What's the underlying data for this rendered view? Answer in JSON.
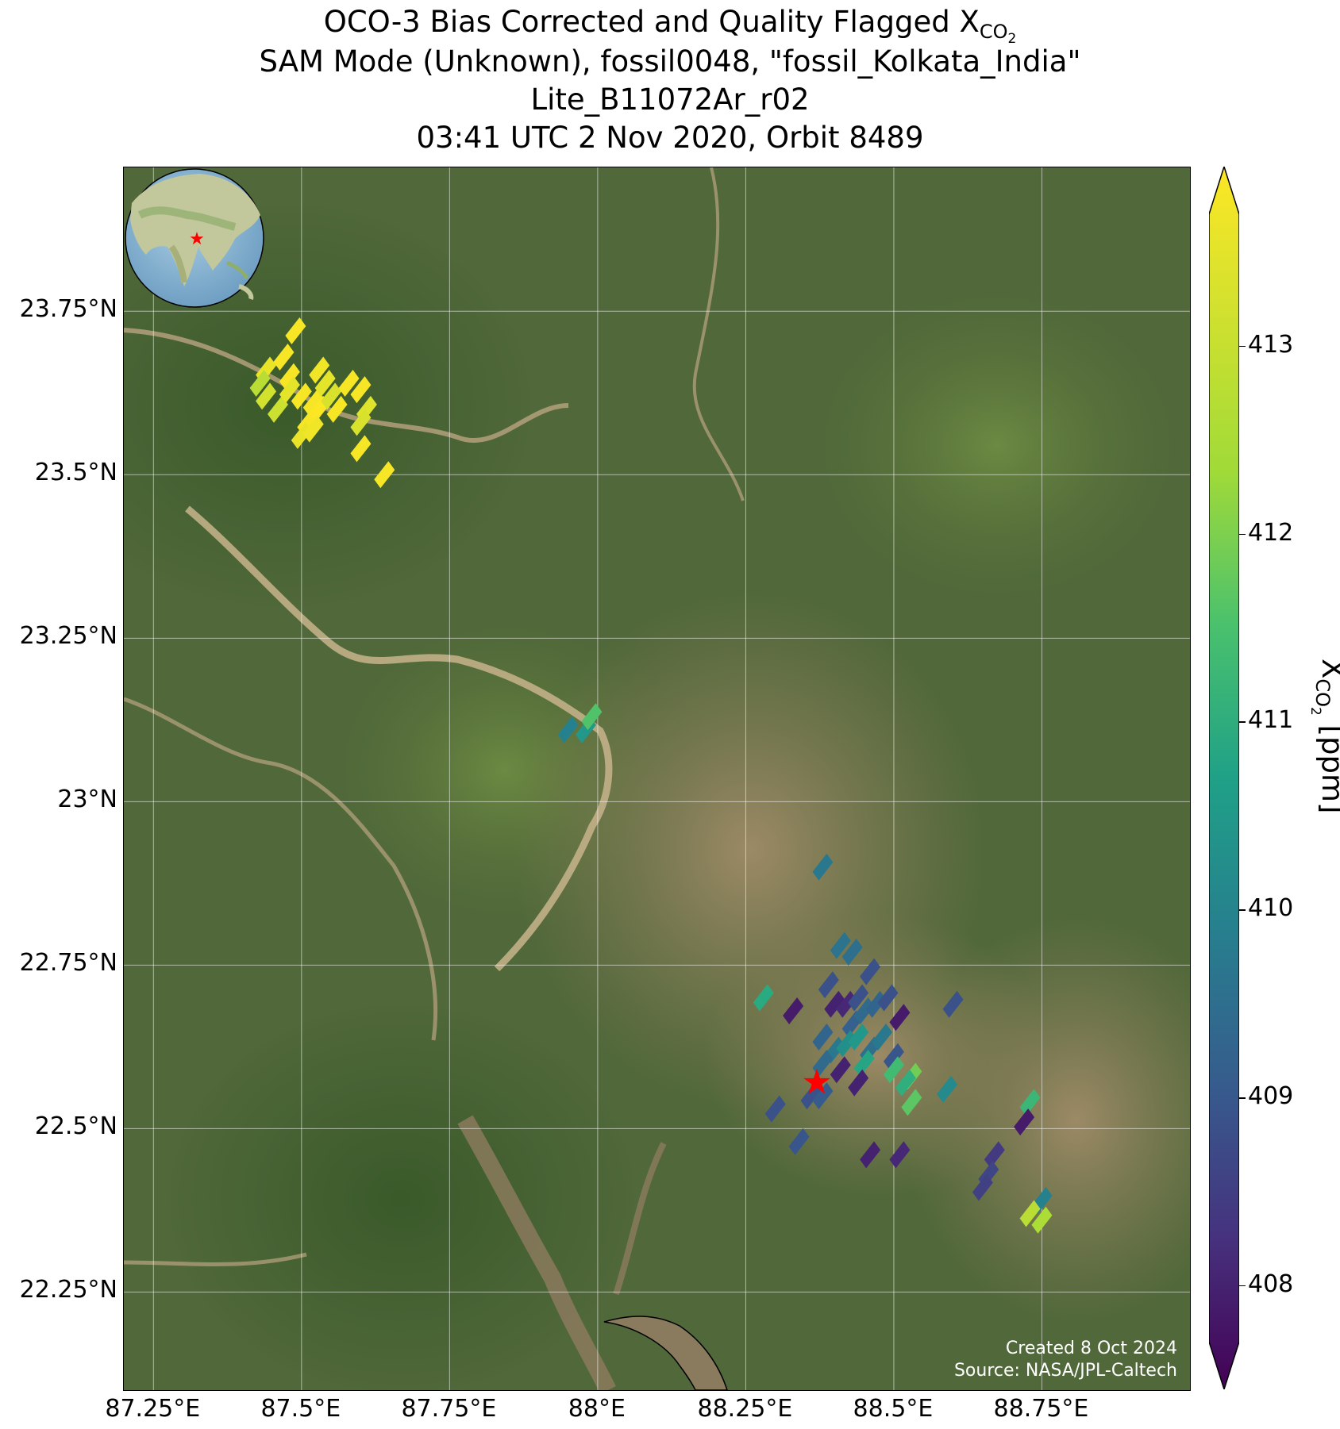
{
  "title": {
    "line1_prefix": "OCO-3 Bias Corrected and Quality Flagged X",
    "line1_sub": "CO",
    "line1_sub2": "2",
    "line2": "SAM Mode (Unknown), fossil0048, \"fossil_Kolkata_India\"",
    "line3": "Lite_B11072Ar_r02",
    "line4": "03:41 UTC 2 Nov 2020, Orbit 8489"
  },
  "map": {
    "lon_range": [
      87.2,
      89.0
    ],
    "lat_range": [
      22.1,
      23.97
    ],
    "x_ticks": [
      {
        "value": 87.25,
        "label": "87.25°E"
      },
      {
        "value": 87.5,
        "label": "87.5°E"
      },
      {
        "value": 87.75,
        "label": "87.75°E"
      },
      {
        "value": 88.0,
        "label": "88°E"
      },
      {
        "value": 88.25,
        "label": "88.25°E"
      },
      {
        "value": 88.5,
        "label": "88.5°E"
      },
      {
        "value": 88.75,
        "label": "88.75°E"
      }
    ],
    "y_ticks": [
      {
        "value": 23.75,
        "label": "23.75°N"
      },
      {
        "value": 23.5,
        "label": "23.5°N"
      },
      {
        "value": 23.25,
        "label": "23.25°N"
      },
      {
        "value": 23.0,
        "label": "23°N"
      },
      {
        "value": 22.75,
        "label": "22.75°N"
      },
      {
        "value": 22.5,
        "label": "22.5°N"
      },
      {
        "value": 22.25,
        "label": "22.25°N"
      }
    ],
    "gridlines": true,
    "target_marker": {
      "lon": 88.37,
      "lat": 22.57,
      "color": "#ff0000",
      "icon": "star-icon"
    },
    "credit_line1": "Created 8 Oct 2024",
    "credit_line2": "Source: NASA/JPL-Caltech",
    "inset": "globe-inset-asia",
    "basemap": "satellite-imagery"
  },
  "colorbar": {
    "colormap": "viridis",
    "range": [
      407.7,
      413.7
    ],
    "ticks": [
      408,
      409,
      410,
      411,
      412,
      413
    ],
    "extend": "both",
    "label_prefix": "X",
    "label_sub": "CO",
    "label_sub2": "2",
    "label_suffix": " [ppm]"
  },
  "chart_data": {
    "type": "scatter",
    "xlabel": "",
    "ylabel": "",
    "soundings": [
      {
        "lon": 87.49,
        "lat": 23.72,
        "xco2": 413.6
      },
      {
        "lon": 87.47,
        "lat": 23.68,
        "xco2": 413.6
      },
      {
        "lon": 87.48,
        "lat": 23.65,
        "xco2": 413.6
      },
      {
        "lon": 87.44,
        "lat": 23.66,
        "xco2": 413.4
      },
      {
        "lon": 87.43,
        "lat": 23.64,
        "xco2": 412.6
      },
      {
        "lon": 87.46,
        "lat": 23.6,
        "xco2": 412.9
      },
      {
        "lon": 87.44,
        "lat": 23.62,
        "xco2": 413.0
      },
      {
        "lon": 87.48,
        "lat": 23.63,
        "xco2": 413.3
      },
      {
        "lon": 87.5,
        "lat": 23.62,
        "xco2": 413.6
      },
      {
        "lon": 87.52,
        "lat": 23.61,
        "xco2": 413.6
      },
      {
        "lon": 87.51,
        "lat": 23.58,
        "xco2": 413.6
      },
      {
        "lon": 87.53,
        "lat": 23.6,
        "xco2": 413.7
      },
      {
        "lon": 87.54,
        "lat": 23.64,
        "xco2": 413.3
      },
      {
        "lon": 87.53,
        "lat": 23.66,
        "xco2": 413.5
      },
      {
        "lon": 87.55,
        "lat": 23.62,
        "xco2": 413.1
      },
      {
        "lon": 87.56,
        "lat": 23.6,
        "xco2": 413.6
      },
      {
        "lon": 87.58,
        "lat": 23.64,
        "xco2": 413.6
      },
      {
        "lon": 87.6,
        "lat": 23.63,
        "xco2": 413.6
      },
      {
        "lon": 87.61,
        "lat": 23.6,
        "xco2": 413.2
      },
      {
        "lon": 87.6,
        "lat": 23.58,
        "xco2": 413.1
      },
      {
        "lon": 87.5,
        "lat": 23.56,
        "xco2": 413.4
      },
      {
        "lon": 87.52,
        "lat": 23.57,
        "xco2": 413.5
      },
      {
        "lon": 87.6,
        "lat": 23.54,
        "xco2": 413.6
      },
      {
        "lon": 87.64,
        "lat": 23.5,
        "xco2": 413.6
      },
      {
        "lon": 87.95,
        "lat": 23.11,
        "xco2": 410.0
      },
      {
        "lon": 87.98,
        "lat": 23.11,
        "xco2": 410.5
      },
      {
        "lon": 87.99,
        "lat": 23.13,
        "xco2": 411.5
      },
      {
        "lon": 88.38,
        "lat": 22.9,
        "xco2": 409.8
      },
      {
        "lon": 88.41,
        "lat": 22.78,
        "xco2": 409.7
      },
      {
        "lon": 88.43,
        "lat": 22.77,
        "xco2": 409.6
      },
      {
        "lon": 88.46,
        "lat": 22.74,
        "xco2": 409.0
      },
      {
        "lon": 88.39,
        "lat": 22.72,
        "xco2": 409.0
      },
      {
        "lon": 88.4,
        "lat": 22.69,
        "xco2": 408.2
      },
      {
        "lon": 88.42,
        "lat": 22.69,
        "xco2": 408.3
      },
      {
        "lon": 88.44,
        "lat": 22.7,
        "xco2": 409.0
      },
      {
        "lon": 88.43,
        "lat": 22.66,
        "xco2": 409.3
      },
      {
        "lon": 88.45,
        "lat": 22.68,
        "xco2": 409.5
      },
      {
        "lon": 88.47,
        "lat": 22.69,
        "xco2": 409.4
      },
      {
        "lon": 88.49,
        "lat": 22.7,
        "xco2": 409.0
      },
      {
        "lon": 88.33,
        "lat": 22.68,
        "xco2": 408.1
      },
      {
        "lon": 88.28,
        "lat": 22.7,
        "xco2": 410.9
      },
      {
        "lon": 88.38,
        "lat": 22.64,
        "xco2": 409.4
      },
      {
        "lon": 88.4,
        "lat": 22.62,
        "xco2": 409.8
      },
      {
        "lon": 88.42,
        "lat": 22.63,
        "xco2": 410.3
      },
      {
        "lon": 88.44,
        "lat": 22.64,
        "xco2": 410.5
      },
      {
        "lon": 88.46,
        "lat": 22.62,
        "xco2": 409.6
      },
      {
        "lon": 88.48,
        "lat": 22.64,
        "xco2": 409.8
      },
      {
        "lon": 88.51,
        "lat": 22.67,
        "xco2": 408.1
      },
      {
        "lon": 88.38,
        "lat": 22.6,
        "xco2": 409.5
      },
      {
        "lon": 88.41,
        "lat": 22.59,
        "xco2": 408.2
      },
      {
        "lon": 88.45,
        "lat": 22.6,
        "xco2": 410.8
      },
      {
        "lon": 88.5,
        "lat": 22.61,
        "xco2": 409.1
      },
      {
        "lon": 88.5,
        "lat": 22.59,
        "xco2": 411.3
      },
      {
        "lon": 88.53,
        "lat": 22.58,
        "xco2": 411.8
      },
      {
        "lon": 88.52,
        "lat": 22.57,
        "xco2": 411.0
      },
      {
        "lon": 88.53,
        "lat": 22.54,
        "xco2": 411.6
      },
      {
        "lon": 88.44,
        "lat": 22.57,
        "xco2": 408.2
      },
      {
        "lon": 88.36,
        "lat": 22.55,
        "xco2": 409.0
      },
      {
        "lon": 88.38,
        "lat": 22.55,
        "xco2": 409.2
      },
      {
        "lon": 88.3,
        "lat": 22.53,
        "xco2": 409.0
      },
      {
        "lon": 88.34,
        "lat": 22.48,
        "xco2": 409.1
      },
      {
        "lon": 88.46,
        "lat": 22.46,
        "xco2": 408.2
      },
      {
        "lon": 88.51,
        "lat": 22.46,
        "xco2": 408.3
      },
      {
        "lon": 88.6,
        "lat": 22.69,
        "xco2": 409.0
      },
      {
        "lon": 88.59,
        "lat": 22.56,
        "xco2": 410.2
      },
      {
        "lon": 88.67,
        "lat": 22.46,
        "xco2": 408.6
      },
      {
        "lon": 88.66,
        "lat": 22.43,
        "xco2": 408.8
      },
      {
        "lon": 88.65,
        "lat": 22.41,
        "xco2": 408.7
      },
      {
        "lon": 88.73,
        "lat": 22.54,
        "xco2": 411.2
      },
      {
        "lon": 88.72,
        "lat": 22.51,
        "xco2": 408.1
      },
      {
        "lon": 88.75,
        "lat": 22.39,
        "xco2": 410.0
      },
      {
        "lon": 88.73,
        "lat": 22.37,
        "xco2": 412.6
      },
      {
        "lon": 88.75,
        "lat": 22.36,
        "xco2": 412.4
      }
    ]
  }
}
